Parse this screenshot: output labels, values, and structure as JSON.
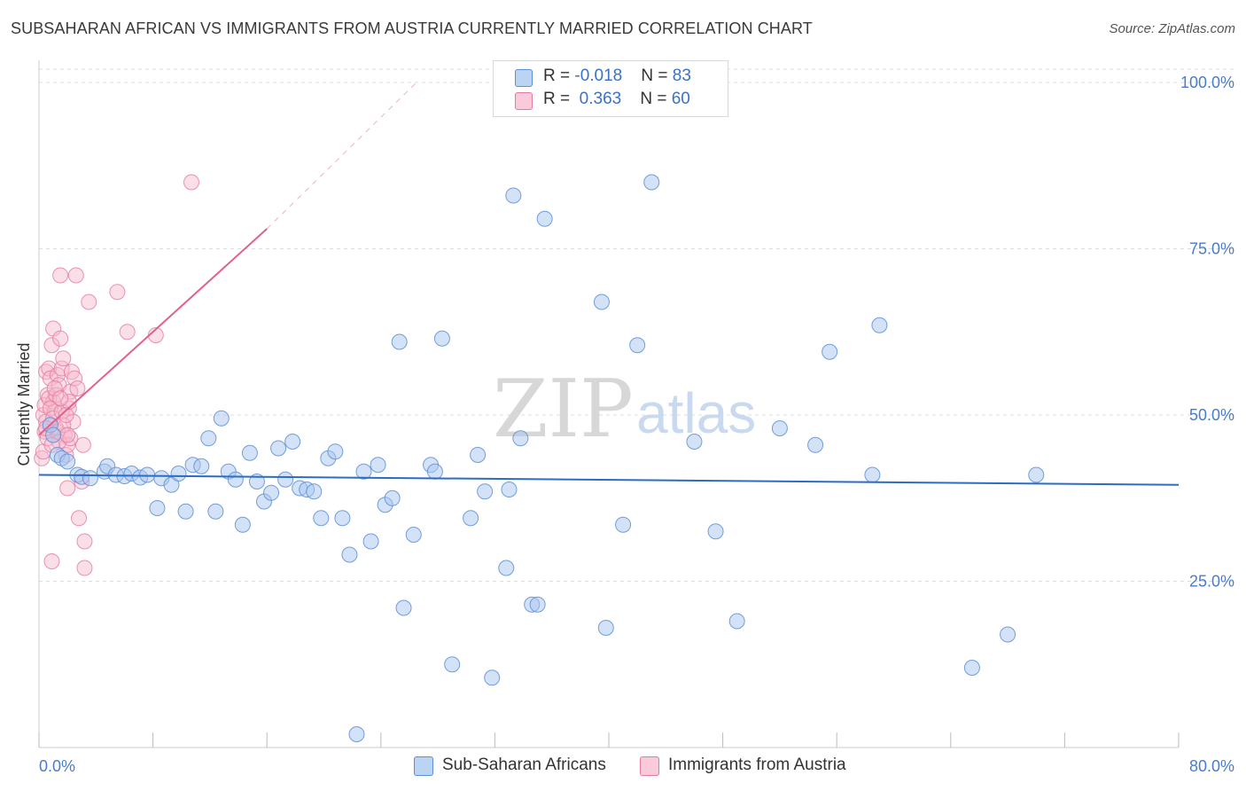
{
  "title": "SUBSAHARAN AFRICAN VS IMMIGRANTS FROM AUSTRIA CURRENTLY MARRIED CORRELATION CHART",
  "source": "Source: ZipAtlas.com",
  "watermark": {
    "zip": "ZIP",
    "atlas": "atlas"
  },
  "legend": {
    "rows": [
      {
        "r_label": "R = ",
        "r_value": "-0.018",
        "n_label": "N = ",
        "n_value": "83"
      },
      {
        "r_label": "R = ",
        "r_value": "0.363",
        "n_label": "N = ",
        "n_value": "60"
      }
    ]
  },
  "bottom_legend": [
    "Sub-Saharan Africans",
    "Immigrants from Austria"
  ],
  "colors": {
    "blue_fill": "#a9c6ef",
    "blue_stroke": "#5b8fd6",
    "blue_line": "#2b6cc4",
    "pink_fill": "#f6b9cc",
    "pink_stroke": "#e57a9c",
    "pink_line": "#e0628b",
    "axis_text": "#4a7cc9",
    "grid": "#dddddd"
  },
  "chart_data": {
    "type": "scatter",
    "title": "SUBSAHARAN AFRICAN VS IMMIGRANTS FROM AUSTRIA CURRENTLY MARRIED CORRELATION CHART",
    "xlabel": "",
    "ylabel": "Currently Married",
    "xlim": [
      0,
      80
    ],
    "ylim": [
      0,
      102
    ],
    "x_tick_labels": [
      "0.0%",
      "80.0%"
    ],
    "y_ticks": [
      25,
      50,
      75,
      100
    ],
    "y_tick_labels": [
      "25.0%",
      "50.0%",
      "75.0%",
      "100.0%"
    ],
    "grid": true,
    "series": [
      {
        "name": "Sub-Saharan Africans",
        "R": -0.018,
        "N": 83,
        "trend": {
          "x": [
            0,
            80
          ],
          "y": [
            41.0,
            39.5
          ]
        },
        "points": [
          [
            0.8,
            48.5
          ],
          [
            1.0,
            47.0
          ],
          [
            1.3,
            44.0
          ],
          [
            1.6,
            43.5
          ],
          [
            2.0,
            43.0
          ],
          [
            2.7,
            41.0
          ],
          [
            3.0,
            40.7
          ],
          [
            3.6,
            40.5
          ],
          [
            4.6,
            41.5
          ],
          [
            4.8,
            42.3
          ],
          [
            5.4,
            41.0
          ],
          [
            6.0,
            40.8
          ],
          [
            6.5,
            41.2
          ],
          [
            7.1,
            40.6
          ],
          [
            7.6,
            41.0
          ],
          [
            8.3,
            36.0
          ],
          [
            8.6,
            40.5
          ],
          [
            9.3,
            39.5
          ],
          [
            9.8,
            41.2
          ],
          [
            10.3,
            35.5
          ],
          [
            10.8,
            42.5
          ],
          [
            11.4,
            42.3
          ],
          [
            11.9,
            46.5
          ],
          [
            12.4,
            35.5
          ],
          [
            12.8,
            49.5
          ],
          [
            13.3,
            41.5
          ],
          [
            13.8,
            40.3
          ],
          [
            14.3,
            33.5
          ],
          [
            14.8,
            44.3
          ],
          [
            15.3,
            40.0
          ],
          [
            15.8,
            37.0
          ],
          [
            16.3,
            38.3
          ],
          [
            16.8,
            45.0
          ],
          [
            17.3,
            40.3
          ],
          [
            17.8,
            46.0
          ],
          [
            18.3,
            39.0
          ],
          [
            18.8,
            38.8
          ],
          [
            19.3,
            38.5
          ],
          [
            19.8,
            34.5
          ],
          [
            20.3,
            43.5
          ],
          [
            20.8,
            44.5
          ],
          [
            21.3,
            34.5
          ],
          [
            21.8,
            29.0
          ],
          [
            22.3,
            2.0
          ],
          [
            22.8,
            41.5
          ],
          [
            23.3,
            31.0
          ],
          [
            23.8,
            42.5
          ],
          [
            24.3,
            36.5
          ],
          [
            24.8,
            37.5
          ],
          [
            25.3,
            61.0
          ],
          [
            25.6,
            21.0
          ],
          [
            26.3,
            32.0
          ],
          [
            27.5,
            42.5
          ],
          [
            27.8,
            41.5
          ],
          [
            28.3,
            61.5
          ],
          [
            29.0,
            12.5
          ],
          [
            30.3,
            34.5
          ],
          [
            30.8,
            44.0
          ],
          [
            31.3,
            38.5
          ],
          [
            31.8,
            10.5
          ],
          [
            32.8,
            27.0
          ],
          [
            33.0,
            38.8
          ],
          [
            33.3,
            83.0
          ],
          [
            33.8,
            46.5
          ],
          [
            34.6,
            21.5
          ],
          [
            35.0,
            21.5
          ],
          [
            35.5,
            79.5
          ],
          [
            39.5,
            67.0
          ],
          [
            39.8,
            18.0
          ],
          [
            41.0,
            33.5
          ],
          [
            42.0,
            60.5
          ],
          [
            43.0,
            85.0
          ],
          [
            46.0,
            46.0
          ],
          [
            47.5,
            32.5
          ],
          [
            49.0,
            19.0
          ],
          [
            52.0,
            48.0
          ],
          [
            54.5,
            45.5
          ],
          [
            55.5,
            59.5
          ],
          [
            58.5,
            41.0
          ],
          [
            59.0,
            63.5
          ],
          [
            65.5,
            12.0
          ],
          [
            68.0,
            17.0
          ],
          [
            70.0,
            41.0
          ]
        ]
      },
      {
        "name": "Immigrants from Austria",
        "R": 0.363,
        "N": 60,
        "trend": {
          "x": [
            0,
            16
          ],
          "y": [
            47.0,
            78.0
          ],
          "extension": {
            "x": [
              16,
              26.5
            ],
            "y": [
              78.0,
              100.0
            ]
          }
        },
        "points": [
          [
            0.2,
            43.5
          ],
          [
            0.3,
            50.0
          ],
          [
            0.4,
            51.5
          ],
          [
            0.5,
            49.0
          ],
          [
            0.5,
            56.5
          ],
          [
            0.6,
            53.0
          ],
          [
            0.7,
            57.0
          ],
          [
            0.8,
            55.5
          ],
          [
            0.9,
            60.5
          ],
          [
            1.0,
            63.0
          ],
          [
            0.9,
            28.0
          ],
          [
            1.0,
            52.0
          ],
          [
            1.1,
            50.5
          ],
          [
            1.2,
            48.0
          ],
          [
            1.3,
            56.0
          ],
          [
            1.4,
            54.5
          ],
          [
            1.5,
            61.5
          ],
          [
            1.5,
            71.0
          ],
          [
            1.6,
            57.0
          ],
          [
            1.7,
            58.5
          ],
          [
            1.8,
            47.0
          ],
          [
            1.9,
            44.0
          ],
          [
            2.0,
            45.5
          ],
          [
            2.0,
            39.0
          ],
          [
            2.1,
            51.0
          ],
          [
            2.2,
            53.5
          ],
          [
            2.3,
            56.5
          ],
          [
            2.4,
            49.0
          ],
          [
            2.5,
            55.5
          ],
          [
            2.6,
            71.0
          ],
          [
            2.7,
            54.0
          ],
          [
            2.8,
            34.5
          ],
          [
            3.0,
            40.0
          ],
          [
            3.1,
            45.5
          ],
          [
            3.2,
            31.0
          ],
          [
            3.2,
            27.0
          ],
          [
            3.5,
            67.0
          ],
          [
            5.5,
            68.5
          ],
          [
            6.2,
            62.5
          ],
          [
            8.2,
            62.0
          ],
          [
            10.7,
            85.0
          ],
          [
            0.3,
            44.5
          ],
          [
            0.4,
            47.5
          ],
          [
            0.6,
            46.5
          ],
          [
            0.7,
            52.5
          ],
          [
            0.8,
            51.0
          ],
          [
            1.0,
            49.5
          ],
          [
            1.2,
            53.0
          ],
          [
            1.3,
            47.5
          ],
          [
            1.4,
            46.0
          ],
          [
            1.6,
            50.5
          ],
          [
            1.7,
            48.5
          ],
          [
            1.9,
            50.0
          ],
          [
            2.1,
            52.0
          ],
          [
            2.2,
            46.5
          ],
          [
            0.5,
            48.0
          ],
          [
            0.9,
            45.5
          ],
          [
            1.1,
            54.0
          ],
          [
            1.5,
            52.5
          ],
          [
            2.0,
            47.0
          ]
        ]
      }
    ]
  }
}
